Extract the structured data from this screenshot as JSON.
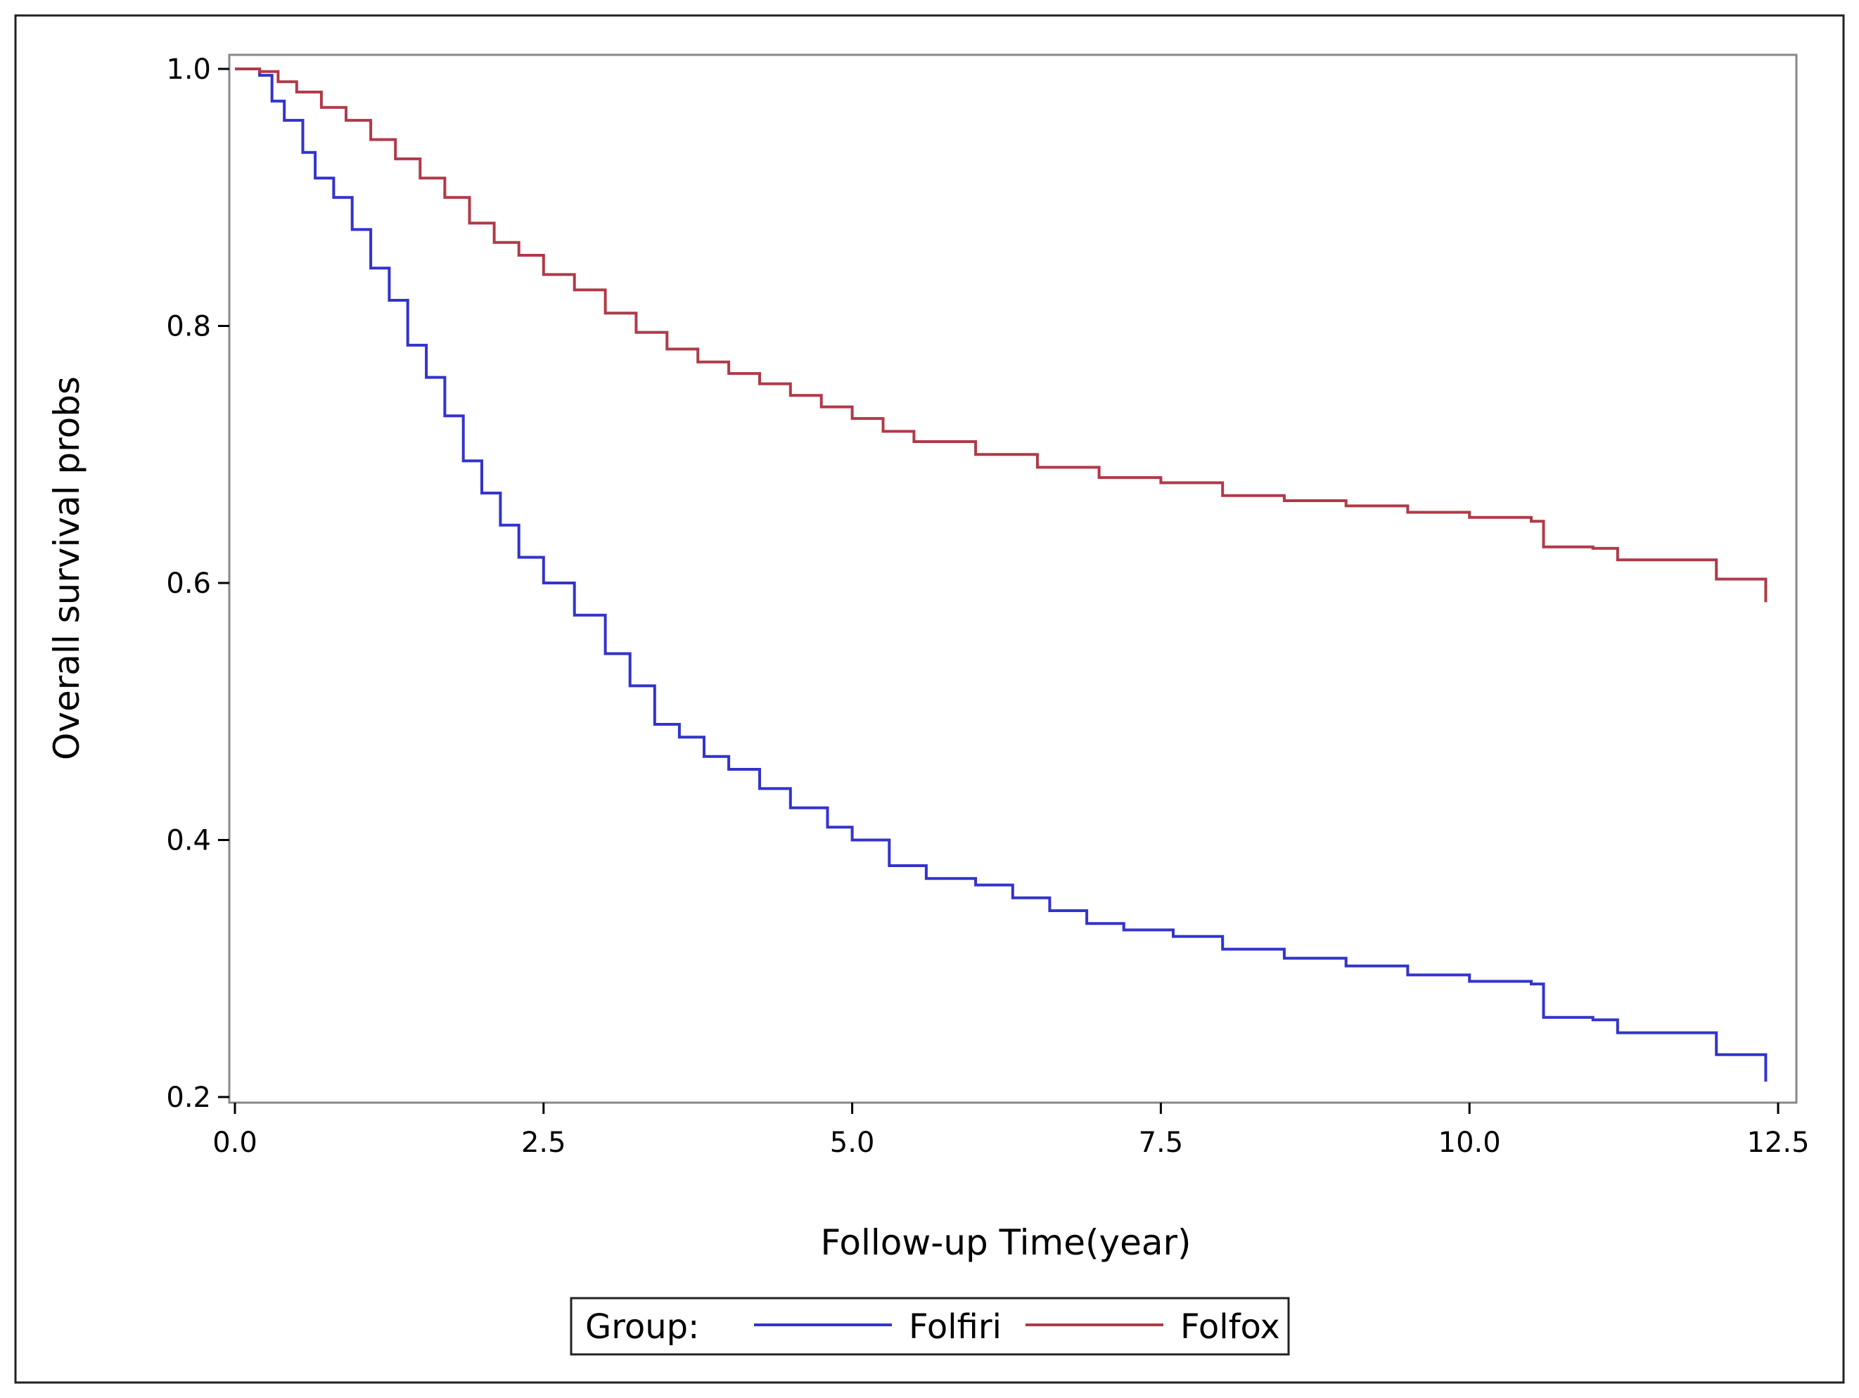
{
  "chart_data": {
    "type": "line",
    "step": true,
    "xlabel": "Follow-up Time(year)",
    "ylabel": "Overall survival probs",
    "xlim": [
      0,
      12.5
    ],
    "ylim": [
      0.2,
      1.0
    ],
    "x_ticks": [
      "0.0",
      "2.5",
      "5.0",
      "7.5",
      "10.0",
      "12.5"
    ],
    "y_ticks": [
      "0.2",
      "0.4",
      "0.6",
      "0.8",
      "1.0"
    ],
    "grid": false,
    "legend": {
      "title": "Group:",
      "placement": "bottom-center"
    },
    "series": [
      {
        "name": "Folfiri",
        "color": "#3333cc",
        "x": [
          0,
          0.2,
          0.3,
          0.4,
          0.55,
          0.65,
          0.8,
          0.95,
          1.1,
          1.25,
          1.4,
          1.55,
          1.7,
          1.85,
          2.0,
          2.15,
          2.3,
          2.5,
          2.75,
          3.0,
          3.2,
          3.4,
          3.6,
          3.8,
          4.0,
          4.25,
          4.5,
          4.8,
          5.0,
          5.3,
          5.6,
          6.0,
          6.3,
          6.6,
          6.9,
          7.2,
          7.6,
          8.0,
          8.5,
          9.0,
          9.5,
          10.0,
          10.5,
          10.6,
          11.0,
          11.2,
          12.0,
          12.4
        ],
        "y": [
          1.0,
          0.995,
          0.975,
          0.96,
          0.935,
          0.915,
          0.9,
          0.875,
          0.845,
          0.82,
          0.785,
          0.76,
          0.73,
          0.695,
          0.67,
          0.645,
          0.62,
          0.6,
          0.575,
          0.545,
          0.52,
          0.49,
          0.48,
          0.465,
          0.455,
          0.44,
          0.425,
          0.41,
          0.4,
          0.38,
          0.37,
          0.365,
          0.355,
          0.345,
          0.335,
          0.33,
          0.325,
          0.315,
          0.308,
          0.302,
          0.295,
          0.29,
          0.288,
          0.262,
          0.26,
          0.25,
          0.233,
          0.212
        ]
      },
      {
        "name": "Folfox",
        "color": "#b03a48",
        "x": [
          0,
          0.2,
          0.35,
          0.5,
          0.7,
          0.9,
          1.1,
          1.3,
          1.5,
          1.7,
          1.9,
          2.1,
          2.3,
          2.5,
          2.75,
          3.0,
          3.25,
          3.5,
          3.75,
          4.0,
          4.25,
          4.5,
          4.75,
          5.0,
          5.25,
          5.5,
          6.0,
          6.5,
          7.0,
          7.5,
          8.0,
          8.5,
          9.0,
          9.5,
          10.0,
          10.5,
          10.6,
          11.0,
          11.2,
          12.0,
          12.4
        ],
        "y": [
          1.0,
          0.998,
          0.99,
          0.982,
          0.97,
          0.96,
          0.945,
          0.93,
          0.915,
          0.9,
          0.88,
          0.865,
          0.855,
          0.84,
          0.828,
          0.81,
          0.795,
          0.782,
          0.772,
          0.763,
          0.755,
          0.746,
          0.737,
          0.728,
          0.718,
          0.71,
          0.7,
          0.69,
          0.682,
          0.678,
          0.668,
          0.664,
          0.66,
          0.655,
          0.651,
          0.648,
          0.628,
          0.627,
          0.618,
          0.603,
          0.585
        ]
      }
    ]
  }
}
